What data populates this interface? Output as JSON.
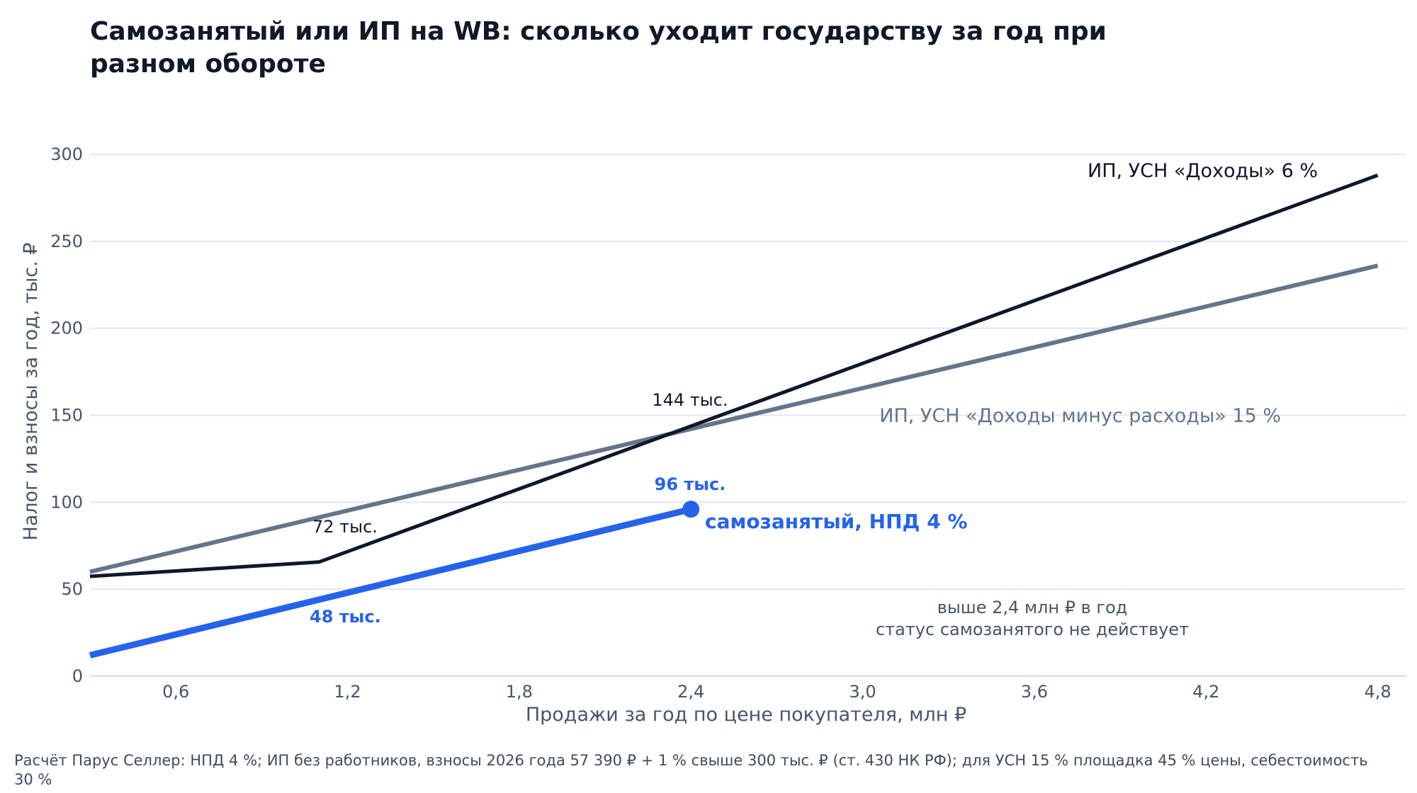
{
  "chart_data": {
    "type": "line",
    "title": "Самозанятый или ИП на WB: сколько уходит государству за год при разном обороте",
    "xlabel": "Продажи за год по цене покупателя, млн ₽",
    "ylabel": "Налог и взносы за год, тыс. ₽",
    "xlim": [
      0.3,
      4.9
    ],
    "ylim": [
      0,
      300
    ],
    "xticks": [
      0.6,
      1.2,
      1.8,
      2.4,
      3.0,
      3.6,
      4.2,
      4.8
    ],
    "xtick_labels": [
      "0,6",
      "1,2",
      "1,8",
      "2,4",
      "3,0",
      "3,6",
      "4,2",
      "4,8"
    ],
    "yticks": [
      0,
      50,
      100,
      150,
      200,
      250,
      300
    ],
    "ytick_labels": [
      "0",
      "50",
      "100",
      "150",
      "200",
      "250",
      "300"
    ],
    "grid": "horizontal",
    "series": [
      {
        "name": "ИП, УСН «Доходы минус расходы» 15 %",
        "color": "#64748b",
        "x": [
          0.3,
          4.8
        ],
        "y": [
          60,
          236
        ]
      },
      {
        "name": "ИП, УСН «Доходы» 6 %",
        "color": "#0f172a",
        "x": [
          0.3,
          1.1,
          4.8
        ],
        "y": [
          57.4,
          65.6,
          288
        ]
      },
      {
        "name": "самозанятый, НПД 4 %",
        "color": "#2563eb",
        "x": [
          0.3,
          2.4
        ],
        "y": [
          12,
          96
        ]
      }
    ],
    "annotations": [
      {
        "text": "72 тыс.",
        "x": 1.2,
        "y": 72,
        "color": "#0f172a"
      },
      {
        "text": "144 тыс.",
        "x": 2.4,
        "y": 144,
        "color": "#0f172a"
      },
      {
        "text": "48 тыс.",
        "x": 1.2,
        "y": 48,
        "color": "#2563eb"
      },
      {
        "text": "96 тыс.",
        "x": 2.4,
        "y": 96,
        "color": "#2563eb"
      },
      {
        "text": "выше 2,4 млн ₽ в год статус самозанятого не действует",
        "x": 3.6,
        "y": 30
      }
    ],
    "note": "Расчёт Парус Селлер: НПД 4 %; ИП без работников, взносы 2026 года 57 390 ₽ + 1 % свыше 300 тыс. ₽ (ст. 430 НК РФ); для УСН 15 % площадка 45 % цены, себестоимость 30 %"
  }
}
